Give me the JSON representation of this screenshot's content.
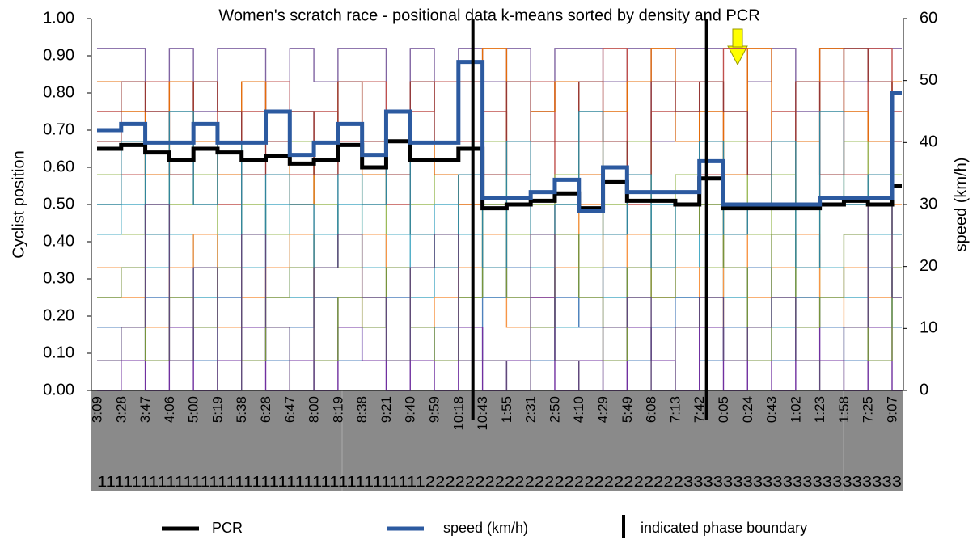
{
  "chart_data": {
    "type": "step-line",
    "title": "Women's scratch race - positional data k-means sorted by density and PCR",
    "y_label": "Cyclist position",
    "y2_label": "speed (km/h)",
    "categories": [
      "3:09",
      "3:28",
      "3:47",
      "4:06",
      "5:00",
      "5:19",
      "5:38",
      "6:28",
      "6:47",
      "8:00",
      "8:19",
      "8:38",
      "9:21",
      "9:40",
      "9:59",
      "10:18",
      "10:43",
      "1:55",
      "2:31",
      "2:50",
      "4:10",
      "4:29",
      "5:49",
      "6:08",
      "7:13",
      "7:42",
      "0:05",
      "0:24",
      "0:43",
      "1:02",
      "1:23",
      "1:58",
      "7:25",
      "9:07"
    ],
    "phase_row": "11111111111111111111111111111111111111222222222222222222222222223333333333333333333333",
    "phase_boundaries": [
      15.6,
      25.3
    ],
    "phase_boundary_label": "indicated phase boundary",
    "ylim": [
      0,
      1
    ],
    "yticks": [
      {
        "value": 0,
        "label": "0.00"
      },
      {
        "value": 0.1,
        "label": "0.10"
      },
      {
        "value": 0.2,
        "label": "0.20"
      },
      {
        "value": 0.3,
        "label": "0.30"
      },
      {
        "value": 0.4,
        "label": "0.40"
      },
      {
        "value": 0.5,
        "label": "0.50"
      },
      {
        "value": 0.6,
        "label": "0.60"
      },
      {
        "value": 0.7,
        "label": "0.70"
      },
      {
        "value": 0.8,
        "label": "0.80"
      },
      {
        "value": 0.9,
        "label": "0.90"
      },
      {
        "value": 1,
        "label": "1.00"
      }
    ],
    "y2lim": [
      0,
      60
    ],
    "y2ticks": [
      0,
      10,
      20,
      30,
      40,
      50,
      60
    ],
    "cyclists": [
      {
        "color": "#8064a2",
        "values": [
          0.92,
          0.92,
          0.83,
          0.92,
          0.75,
          0.92,
          0.92,
          0.67,
          0.92,
          0.83,
          0.92,
          0.92,
          0.75,
          0.92,
          0.83,
          0.92,
          0.83,
          0.92,
          0.75,
          0.92,
          0.92,
          0.83,
          0.92,
          0.67,
          0.92,
          0.92,
          0.92,
          0.83,
          0.92,
          0.75,
          0.92,
          0.83,
          0.92,
          0.92
        ]
      },
      {
        "color": "#c0504d",
        "values": [
          0.75,
          0.58,
          0.83,
          0.67,
          0.83,
          0.5,
          0.75,
          0.83,
          0.58,
          0.75,
          0.67,
          0.83,
          0.5,
          0.75,
          0.83,
          0.67,
          0.75,
          0.58,
          0.83,
          0.42,
          0.67,
          0.92,
          0.5,
          0.75,
          0.83,
          0.58,
          0.92,
          0.67,
          0.75,
          0.5,
          0.83,
          0.58,
          0.92,
          0.75
        ]
      },
      {
        "color": "#9bbb59",
        "values": [
          0.58,
          0.42,
          0.67,
          0.5,
          0.58,
          0.33,
          0.5,
          0.42,
          0.67,
          0.5,
          0.33,
          0.58,
          0.42,
          0.5,
          0.58,
          0.25,
          0.67,
          0.42,
          0.5,
          0.58,
          0.33,
          0.5,
          0.67,
          0.42,
          0.58,
          0.33,
          0.67,
          0.42,
          0.58,
          0.25,
          0.5,
          0.67,
          0.42,
          0.58
        ]
      },
      {
        "color": "#4bacc6",
        "values": [
          0.42,
          0.5,
          0.33,
          0.42,
          0.25,
          0.42,
          0.33,
          0.5,
          0.25,
          0.42,
          0.5,
          0.33,
          0.42,
          0.25,
          0.5,
          0.42,
          0.25,
          0.5,
          0.33,
          0.17,
          0.42,
          0.25,
          0.33,
          0.5,
          0.25,
          0.42,
          0.25,
          0.33,
          0.17,
          0.42,
          0.33,
          0.25,
          0.42,
          0.17
        ]
      },
      {
        "color": "#f79646",
        "values": [
          0.33,
          0.25,
          0.17,
          0.33,
          0.42,
          0.17,
          0.25,
          0.33,
          0.42,
          0.25,
          0.17,
          0.42,
          0.33,
          0.17,
          0.25,
          0.33,
          0.42,
          0.17,
          0.25,
          0.33,
          0.5,
          0.17,
          0.42,
          0.25,
          0.33,
          0.17,
          0.5,
          0.25,
          0.33,
          0.42,
          0.17,
          0.33,
          0.25,
          0.5
        ]
      },
      {
        "color": "#4f81bd",
        "values": [
          0.17,
          0.08,
          0.25,
          0.17,
          0.08,
          0.25,
          0.17,
          0.08,
          0.17,
          0.25,
          0.08,
          0.17,
          0.25,
          0.08,
          0.17,
          0.08,
          0.25,
          0.33,
          0.08,
          0.25,
          0.17,
          0.33,
          0.08,
          0.17,
          0.25,
          0.08,
          0.17,
          0.33,
          0.08,
          0.25,
          0.17,
          0.08,
          0.33,
          0.17
        ]
      },
      {
        "color": "#7030a0",
        "values": [
          0,
          0.08,
          0,
          0.17,
          0,
          0.08,
          0.17,
          0,
          0.08,
          0,
          0.17,
          0.08,
          0,
          0.08,
          0,
          0.17,
          0,
          0.08,
          0.25,
          0,
          0.08,
          0,
          0.17,
          0.08,
          0,
          0.17,
          0,
          0.08,
          0,
          0.17,
          0.08,
          0,
          0.17,
          0
        ]
      },
      {
        "color": "#77933c",
        "values": [
          0.25,
          0.33,
          0.08,
          0.25,
          0.17,
          0.33,
          0.08,
          0.25,
          0.33,
          0.08,
          0.25,
          0.17,
          0.33,
          0.17,
          0.08,
          0.25,
          0.5,
          0.25,
          0.17,
          0.42,
          0.25,
          0.08,
          0.33,
          0.25,
          0.42,
          0.5,
          0.33,
          0.08,
          0.42,
          0.17,
          0.25,
          0.42,
          0.08,
          0.33
        ]
      },
      {
        "color": "#e46c0a",
        "values": [
          0.83,
          0.75,
          0.58,
          0.83,
          0.67,
          0.58,
          0.83,
          0.75,
          0.5,
          0.67,
          0.83,
          0.58,
          0.75,
          0.67,
          0.58,
          0.5,
          0.92,
          0.67,
          0.75,
          0.83,
          0.58,
          0.75,
          0.83,
          0.92,
          0.67,
          0.75,
          0.58,
          0.92,
          0.5,
          0.67,
          0.92,
          0.75,
          0.67,
          0.83
        ]
      },
      {
        "color": "#953735",
        "values": [
          0.67,
          0.83,
          0.75,
          0.58,
          0.83,
          0.75,
          0.58,
          0.67,
          0.75,
          0.58,
          0.83,
          0.67,
          0.58,
          0.83,
          0.67,
          0.83,
          0.58,
          0.83,
          0.67,
          0.67,
          0.83,
          0.67,
          0.58,
          0.83,
          0.75,
          0.83,
          0.75,
          0.58,
          0.67,
          0.83,
          0.58,
          0.92,
          0.83,
          0.67
        ]
      },
      {
        "color": "#31859c",
        "values": [
          0.5,
          0.67,
          0.42,
          0.75,
          0.5,
          0.67,
          0.42,
          0.58,
          0.5,
          0.33,
          0.58,
          0.5,
          0.67,
          0.42,
          0.33,
          0.58,
          0.33,
          0.67,
          0.42,
          0.5,
          0.75,
          0.42,
          0.58,
          0.33,
          0.5,
          0.67,
          0.42,
          0.5,
          0.67,
          0.33,
          0.75,
          0.5,
          0.58,
          0.42
        ]
      },
      {
        "color": "#5f497a",
        "values": [
          0.08,
          0.17,
          0.5,
          0.08,
          0.33,
          0,
          0.42,
          0.17,
          0,
          0.33,
          0.42,
          0.25,
          0.08,
          0.33,
          0.42,
          0.08,
          0.08,
          0,
          0.42,
          0.08,
          0,
          0.17,
          0.25,
          0,
          0.17,
          0.25,
          0.08,
          0.17,
          0.25,
          0.08,
          0,
          0.17,
          0.5,
          0.25
        ]
      }
    ],
    "series": [
      {
        "name": "PCR",
        "color": "#000000",
        "values": [
          0.65,
          0.66,
          0.64,
          0.62,
          0.65,
          0.64,
          0.62,
          0.63,
          0.61,
          0.62,
          0.66,
          0.6,
          0.67,
          0.62,
          0.62,
          0.65,
          0.49,
          0.5,
          0.51,
          0.53,
          0.49,
          0.56,
          0.51,
          0.51,
          0.5,
          0.57,
          0.49,
          0.49,
          0.49,
          0.49,
          0.5,
          0.51,
          0.5,
          0.55
        ]
      },
      {
        "name": "speed (km/h)",
        "color": "#2c5aa0",
        "axis": "y2",
        "values": [
          42,
          43,
          40,
          40,
          43,
          40,
          40,
          45,
          38,
          40,
          43,
          38,
          45,
          40,
          40,
          53,
          31,
          31,
          32,
          34,
          29,
          36,
          32,
          32,
          32,
          37,
          30,
          30,
          30,
          30,
          31,
          31,
          31,
          48
        ]
      }
    ]
  }
}
